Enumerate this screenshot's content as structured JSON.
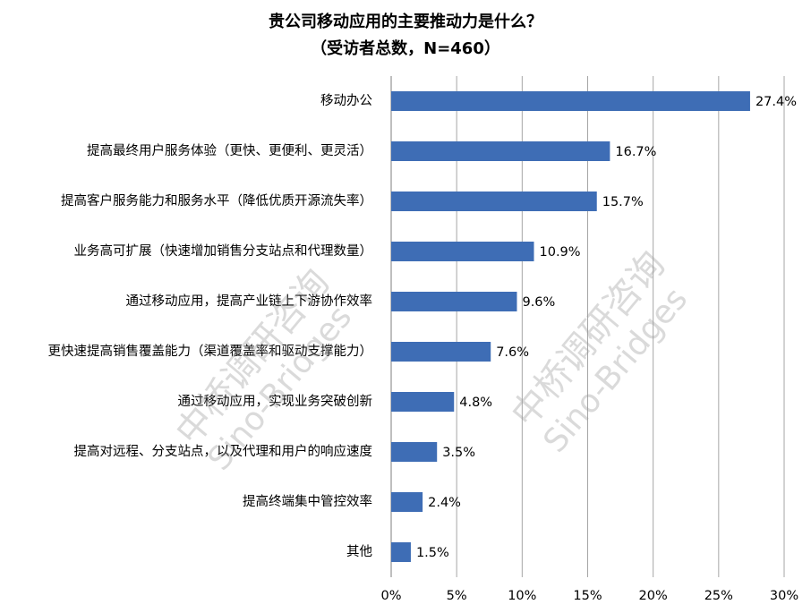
{
  "chart_data": {
    "type": "bar",
    "orientation": "horizontal",
    "title": "贵公司移动应用的主要推动力是什么？",
    "subtitle": "（受访者总数，N=460）",
    "categories": [
      "移动办公",
      "提高最终用户服务体验（更快、更便利、更灵活）",
      "提高客户服务能力和服务水平（降低优质开源流失率）",
      "业务高可扩展（快速增加销售分支站点和代理数量）",
      "通过移动应用，提高产业链上下游协作效率",
      "更快速提高销售覆盖能力（渠道覆盖率和驱动支撑能力）",
      "通过移动应用，实现业务突破创新",
      "提高对远程、分支站点，以及代理和用户的响应速度",
      "提高终端集中管控效率",
      "其他"
    ],
    "values": [
      27.4,
      16.7,
      15.7,
      10.9,
      9.6,
      7.6,
      4.8,
      3.5,
      2.4,
      1.5
    ],
    "value_labels": [
      "27.4%",
      "16.7%",
      "15.7%",
      "10.9%",
      "9.6%",
      "7.6%",
      "4.8%",
      "3.5%",
      "2.4%",
      "1.5%"
    ],
    "xlim": [
      0,
      30
    ],
    "xticks": [
      0,
      5,
      10,
      15,
      20,
      25,
      30
    ],
    "xtick_labels": [
      "0%",
      "5%",
      "10%",
      "15%",
      "20%",
      "25%",
      "30%"
    ],
    "grid": true,
    "bar_color": "#3e6db5"
  },
  "watermark": {
    "line1": "中桥调研咨询",
    "line2": "Sino-Bridges"
  }
}
